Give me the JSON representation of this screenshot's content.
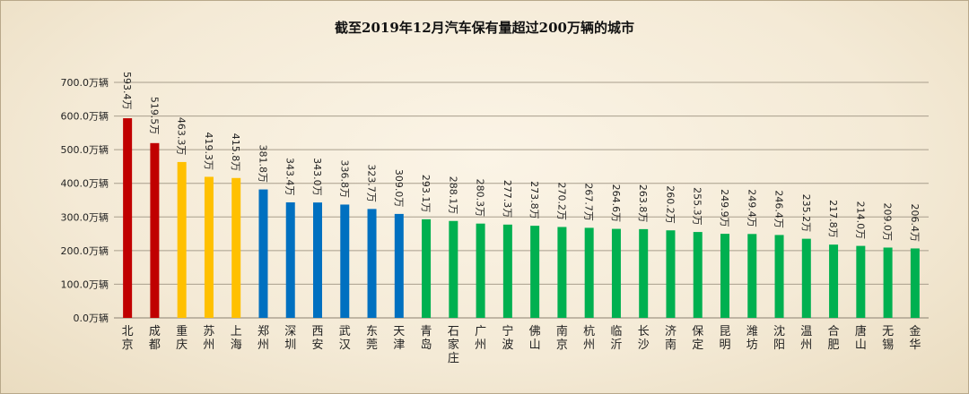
{
  "chart_data": {
    "type": "bar",
    "title": "截至2019年12月汽车保有量超过200万辆的城市",
    "xlabel": "",
    "ylabel": "",
    "ylim": [
      0,
      700
    ],
    "yticks": [
      "0.0万辆",
      "100.0万辆",
      "200.0万辆",
      "300.0万辆",
      "400.0万辆",
      "500.0万辆",
      "600.0万辆",
      "700.0万辆"
    ],
    "grid": true,
    "categories": [
      "北京",
      "成都",
      "重庆",
      "苏州",
      "上海",
      "郑州",
      "深圳",
      "西安",
      "武汉",
      "东莞",
      "天津",
      "青岛",
      "石家庄",
      "广州",
      "宁波",
      "佛山",
      "南京",
      "杭州",
      "临沂",
      "长沙",
      "济南",
      "保定",
      "昆明",
      "潍坊",
      "沈阳",
      "温州",
      "合肥",
      "唐山",
      "无锡",
      "金华"
    ],
    "values": [
      593.4,
      519.5,
      463.3,
      419.3,
      415.8,
      381.8,
      343.4,
      343.0,
      336.8,
      323.7,
      309.0,
      293.1,
      288.1,
      280.3,
      277.3,
      273.8,
      270.2,
      267.7,
      264.6,
      263.8,
      260.2,
      255.3,
      249.9,
      249.4,
      246.4,
      235.2,
      217.8,
      214.0,
      209.0,
      206.4
    ],
    "data_labels": [
      "593.4万",
      "519.5万",
      "463.3万",
      "419.3万",
      "415.8万",
      "381.8万",
      "343.4万",
      "343.0万",
      "336.8万",
      "323.7万",
      "309.0万",
      "293.1万",
      "288.1万",
      "280.3万",
      "277.3万",
      "273.8万",
      "270.2万",
      "267.7万",
      "264.6万",
      "263.8万",
      "260.2万",
      "255.3万",
      "249.9万",
      "249.4万",
      "246.4万",
      "235.2万",
      "217.8万",
      "214.0万",
      "209.0万",
      "206.4万"
    ],
    "bar_colors": [
      "#c00000",
      "#c00000",
      "#ffc000",
      "#ffc000",
      "#ffc000",
      "#0070c0",
      "#0070c0",
      "#0070c0",
      "#0070c0",
      "#0070c0",
      "#0070c0",
      "#00b050",
      "#00b050",
      "#00b050",
      "#00b050",
      "#00b050",
      "#00b050",
      "#00b050",
      "#00b050",
      "#00b050",
      "#00b050",
      "#00b050",
      "#00b050",
      "#00b050",
      "#00b050",
      "#00b050",
      "#00b050",
      "#00b050",
      "#00b050",
      "#00b050"
    ]
  }
}
